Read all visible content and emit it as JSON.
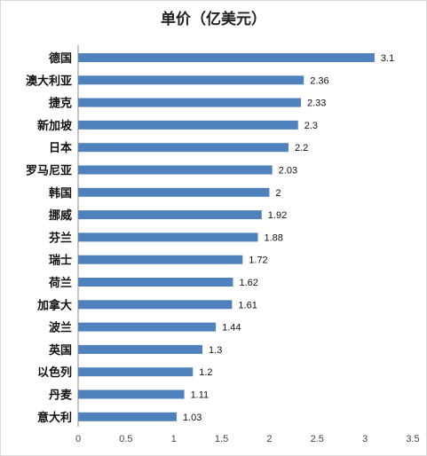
{
  "chart_data": {
    "type": "bar",
    "orientation": "horizontal",
    "title": "单价（亿美元）",
    "categories": [
      "德国",
      "澳大利亚",
      "捷克",
      "新加坡",
      "日本",
      "罗马尼亚",
      "韩国",
      "挪威",
      "芬兰",
      "瑞士",
      "荷兰",
      "加拿大",
      "波兰",
      "英国",
      "以色列",
      "丹麦",
      "意大利"
    ],
    "values": [
      3.1,
      2.36,
      2.33,
      2.3,
      2.2,
      2.03,
      2,
      1.92,
      1.88,
      1.72,
      1.62,
      1.61,
      1.44,
      1.3,
      1.2,
      1.11,
      1.03
    ],
    "value_labels": [
      "3.1",
      "2.36",
      "2.33",
      "2.3",
      "2.2",
      "2.03",
      "2",
      "1.92",
      "1.88",
      "1.72",
      "1.62",
      "1.61",
      "1.44",
      "1.3",
      "1.2",
      "1.11",
      "1.03"
    ],
    "xticks": [
      "0",
      "0.5",
      "1",
      "1.5",
      "2",
      "2.5",
      "3",
      "3.5"
    ],
    "xlim": [
      0,
      3.5
    ],
    "grid": false,
    "legend": "none",
    "bar_color": "#4f81bd"
  }
}
